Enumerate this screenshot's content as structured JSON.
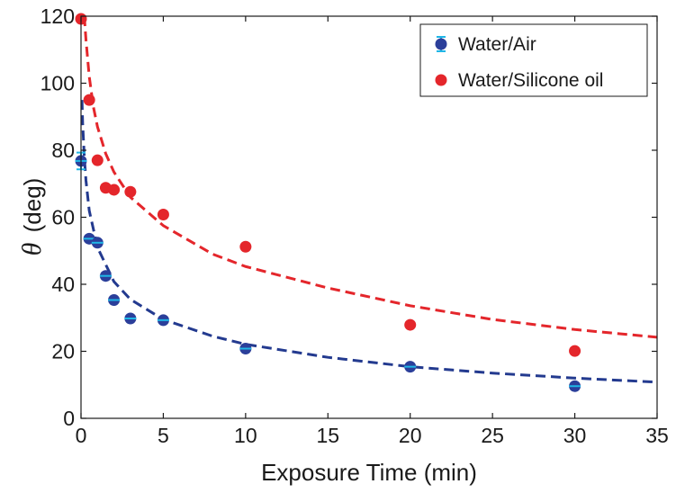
{
  "chart_data": {
    "type": "scatter",
    "xlabel": "Exposure Time (min)",
    "ylabel_symbol": "θ",
    "ylabel_unit": "(deg)",
    "xlim": [
      0,
      35
    ],
    "ylim": [
      0,
      120
    ],
    "xticks": [
      0,
      5,
      10,
      15,
      20,
      25,
      30,
      35
    ],
    "yticks": [
      0,
      20,
      40,
      60,
      80,
      100,
      120
    ],
    "grid": false,
    "legend_position": "top-right",
    "series": [
      {
        "name": "Water/Air",
        "marker_color": "#2b3f9a",
        "errorbar_color": "#1fb6e6",
        "x": [
          0,
          0.5,
          1,
          1.5,
          2,
          3,
          5,
          10,
          20,
          30
        ],
        "y": [
          76.8,
          53.6,
          52.4,
          42.5,
          35.3,
          29.8,
          29.3,
          20.8,
          15.4,
          9.6
        ],
        "err": [
          2.5,
          0.8,
          0.8,
          0.8,
          0.8,
          0.8,
          0.8,
          0.8,
          0.8,
          0.8
        ]
      },
      {
        "name": "Water/Silicone oil",
        "marker_color": "#e4262b",
        "x": [
          0,
          0.5,
          1,
          1.5,
          2,
          3,
          5,
          10,
          20,
          30
        ],
        "y": [
          119.2,
          95,
          77,
          68.8,
          68.2,
          67.6,
          60.8,
          51.2,
          27.9,
          20.1
        ]
      }
    ],
    "fit_curves": [
      {
        "series": "Water/Air",
        "color": "#233a8f",
        "style": "dashed",
        "points": [
          [
            0.06,
            95
          ],
          [
            0.1,
            88
          ],
          [
            0.2,
            78
          ],
          [
            0.3,
            71
          ],
          [
            0.5,
            62
          ],
          [
            1,
            51
          ],
          [
            2,
            40.8
          ],
          [
            3,
            35.5
          ],
          [
            5,
            29.5
          ],
          [
            8,
            24.5
          ],
          [
            10,
            22.1
          ],
          [
            15,
            18.2
          ],
          [
            20,
            15.4
          ],
          [
            25,
            13.5
          ],
          [
            30,
            12
          ],
          [
            35,
            10.8
          ]
        ]
      },
      {
        "series": "Water/Silicone oil",
        "color": "#e4262b",
        "style": "dashed",
        "points": [
          [
            0.2,
            120
          ],
          [
            0.3,
            113
          ],
          [
            0.5,
            102
          ],
          [
            0.75,
            93
          ],
          [
            1,
            87
          ],
          [
            1.5,
            79
          ],
          [
            2,
            73.5
          ],
          [
            3,
            66
          ],
          [
            5,
            57.5
          ],
          [
            8,
            49
          ],
          [
            10,
            45.3
          ],
          [
            15,
            38.9
          ],
          [
            20,
            33.6
          ],
          [
            25,
            29.5
          ],
          [
            30,
            26.5
          ],
          [
            35,
            24.2
          ]
        ]
      }
    ]
  }
}
